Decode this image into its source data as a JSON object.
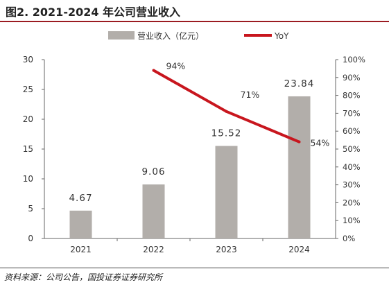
{
  "title": "图2. 2021-2024 年公司营业收入",
  "source": "资料来源：公司公告，国投证券证券研究所",
  "chart_data": {
    "type": "bar",
    "categories": [
      "2021",
      "2022",
      "2023",
      "2024"
    ],
    "series": [
      {
        "name": "营业收入（亿元）",
        "type": "bar",
        "axis": "left",
        "color": "#b2aeaa",
        "values": [
          4.67,
          9.06,
          15.52,
          23.84
        ],
        "labels": [
          "4.67",
          "9.06",
          "15.52",
          "23.84"
        ]
      },
      {
        "name": "YoY",
        "type": "line",
        "axis": "right",
        "color": "#c8161e",
        "values": [
          null,
          94,
          71,
          54
        ],
        "labels": [
          "",
          "94%",
          "71%",
          "54%"
        ]
      }
    ],
    "y_left": {
      "min": 0,
      "max": 30,
      "ticks": [
        "0",
        "5",
        "10",
        "15",
        "20",
        "25",
        "30"
      ]
    },
    "y_right": {
      "min": 0,
      "max": 100,
      "ticks": [
        "0%",
        "10%",
        "20%",
        "30%",
        "40%",
        "50%",
        "60%",
        "70%",
        "80%",
        "90%",
        "100%"
      ]
    },
    "legend_position": "top-center",
    "grid": false
  }
}
